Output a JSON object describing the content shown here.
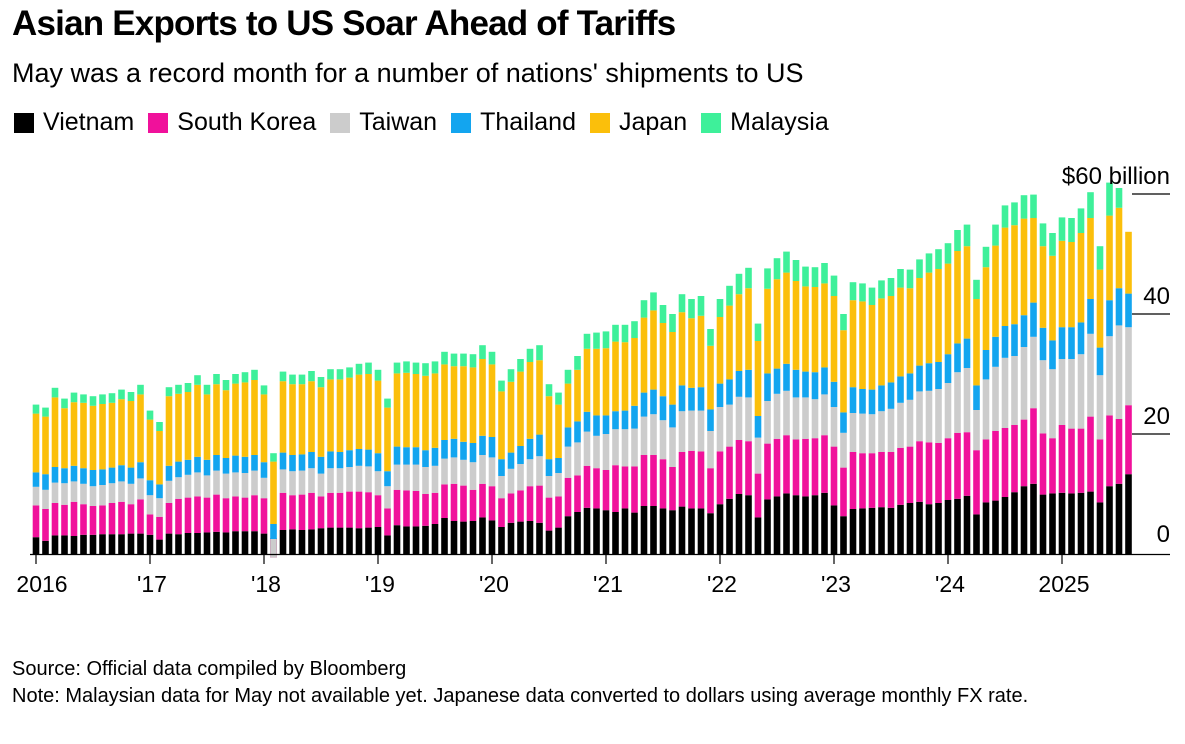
{
  "title": "Asian Exports to US Soar Ahead of Tariffs",
  "subtitle": "May was a record month for a number of nations' shipments to US",
  "source": "Source: Official data compiled by Bloomberg",
  "note": "Note: Malaysian data for May not available yet. Japanese data converted to dollars using average monthly FX rate.",
  "colors": {
    "Vietnam": "#000000",
    "South Korea": "#f0119b",
    "Taiwan": "#cccccc",
    "Thailand": "#13a5ef",
    "Japan": "#fbbf0b",
    "Malaysia": "#3ef09a"
  },
  "chart_data": {
    "type": "bar",
    "stacked": true,
    "title": "Asian Exports to US Soar Ahead of Tariffs",
    "subtitle": "May was a record month for a number of nations' shipments to US",
    "xlabel": "",
    "ylabel": "$ billion",
    "ylim": [
      0,
      60
    ],
    "yticks": [
      0,
      20,
      40,
      60
    ],
    "ytick_labels": [
      "0",
      "20",
      "40",
      "$60 billion"
    ],
    "x_start": "2016-01",
    "xtick_labels": [
      "2016",
      "'17",
      "'18",
      "'19",
      "'20",
      "'21",
      "'22",
      "'23",
      "'24",
      "2025"
    ],
    "legend": "top-left",
    "series": [
      {
        "name": "Vietnam",
        "values": [
          2.8,
          2.2,
          3.1,
          3.1,
          3.0,
          3.2,
          3.2,
          3.3,
          3.3,
          3.3,
          3.4,
          3.4,
          3.2,
          2.4,
          3.4,
          3.3,
          3.5,
          3.5,
          3.6,
          3.7,
          3.6,
          3.8,
          3.8,
          3.8,
          3.4,
          2.6,
          4.0,
          4.1,
          4.0,
          4.1,
          4.3,
          4.4,
          4.4,
          4.4,
          4.3,
          4.4,
          4.5,
          3.1,
          4.8,
          4.6,
          4.6,
          4.7,
          5.0,
          6.0,
          5.5,
          5.4,
          5.5,
          6.1,
          5.6,
          4.5,
          5.2,
          5.4,
          5.5,
          5.2,
          3.9,
          4.4,
          6.3,
          7.0,
          7.7,
          7.6,
          7.3,
          7.0,
          7.6,
          6.9,
          8.0,
          8.0,
          7.6,
          7.3,
          7.9,
          7.6,
          7.6,
          6.8,
          8.3,
          9.2,
          10.0,
          9.8,
          6.1,
          9.1,
          9.6,
          10.1,
          9.8,
          9.6,
          9.8,
          10.2,
          8.1,
          6.3,
          7.5,
          7.6,
          7.7,
          7.8,
          7.7,
          8.2,
          8.5,
          8.7,
          8.3,
          8.5,
          9.0,
          9.2,
          9.7,
          6.6,
          8.6,
          8.9,
          9.5,
          10.3,
          11.3,
          11.7,
          9.9,
          10.1,
          10.2,
          10.1,
          10.2,
          10.4,
          8.6,
          11.3,
          11.7,
          13.3
        ]
      },
      {
        "name": "South Korea",
        "values": [
          5.3,
          5.3,
          5.4,
          5.1,
          5.7,
          5.1,
          4.8,
          4.8,
          5.2,
          5.4,
          4.9,
          5.7,
          3.4,
          3.8,
          5.1,
          5.9,
          5.9,
          6.1,
          5.8,
          6.2,
          5.7,
          5.8,
          5.6,
          6.0,
          5.9,
          -3.2,
          6.2,
          5.7,
          5.9,
          6.1,
          5.3,
          5.8,
          5.8,
          6.0,
          6.1,
          5.9,
          5.3,
          4.5,
          5.9,
          6.0,
          5.9,
          5.3,
          5.2,
          5.6,
          6.2,
          6.0,
          5.2,
          5.6,
          5.7,
          4.8,
          4.9,
          5.2,
          5.8,
          6.2,
          5.5,
          5.2,
          6.4,
          6.1,
          7.0,
          6.7,
          6.7,
          7.8,
          7.0,
          7.7,
          8.5,
          8.5,
          8.2,
          7.2,
          9.1,
          9.6,
          9.5,
          7.5,
          8.8,
          8.7,
          9.0,
          9.0,
          7.3,
          9.3,
          9.6,
          9.7,
          9.3,
          9.6,
          9.5,
          9.6,
          9.8,
          8.1,
          9.5,
          9.2,
          9.1,
          9.2,
          9.3,
          9.5,
          9.4,
          10.1,
          10.3,
          10.0,
          10.3,
          11.0,
          10.6,
          10.7,
          10.5,
          11.6,
          11.5,
          11.2,
          11.1,
          12.6,
          10.2,
          9.2,
          11.3,
          10.8,
          10.7,
          12.5,
          10.5,
          11.8,
          10.8,
          11.5
        ]
      },
      {
        "name": "Taiwan",
        "values": [
          3.1,
          3.2,
          3.4,
          3.6,
          3.4,
          3.4,
          3.3,
          3.4,
          3.3,
          3.4,
          3.4,
          3.5,
          3.2,
          3.1,
          3.7,
          3.6,
          3.8,
          4.0,
          3.7,
          4.0,
          4.1,
          4.0,
          4.1,
          4.1,
          3.4,
          3.1,
          3.9,
          4.0,
          4.0,
          4.1,
          3.8,
          4.1,
          4.1,
          4.1,
          4.3,
          4.3,
          4.0,
          3.7,
          4.2,
          4.3,
          4.4,
          4.5,
          4.5,
          4.3,
          4.4,
          4.3,
          4.6,
          4.8,
          4.8,
          3.7,
          4.1,
          4.4,
          4.5,
          4.9,
          3.6,
          3.9,
          5.2,
          5.5,
          5.7,
          5.4,
          6.0,
          6.0,
          6.2,
          6.3,
          6.4,
          6.8,
          6.5,
          6.6,
          6.8,
          6.7,
          6.8,
          6.2,
          7.4,
          7.0,
          7.2,
          7.3,
          6.0,
          7.1,
          7.5,
          7.4,
          7.0,
          6.9,
          6.5,
          6.8,
          6.6,
          5.8,
          6.5,
          6.6,
          6.5,
          6.8,
          7.2,
          7.5,
          7.8,
          8.3,
          8.6,
          9.0,
          9.2,
          10.1,
          10.7,
          6.7,
          10.0,
          10.7,
          11.7,
          11.5,
          12.1,
          11.9,
          12.2,
          11.5,
          11.0,
          11.6,
          12.4,
          13.8,
          10.7,
          13.2,
          15.6,
          13.0
        ]
      },
      {
        "name": "Thailand",
        "values": [
          2.4,
          2.6,
          2.6,
          2.5,
          2.6,
          2.6,
          2.7,
          2.6,
          2.6,
          2.7,
          2.7,
          2.7,
          2.5,
          2.3,
          2.5,
          2.6,
          2.5,
          2.6,
          2.6,
          2.6,
          2.6,
          2.8,
          2.7,
          2.6,
          2.6,
          2.5,
          2.8,
          2.7,
          2.7,
          2.7,
          2.8,
          2.8,
          2.7,
          2.8,
          2.8,
          2.8,
          3.0,
          2.5,
          3.0,
          2.9,
          2.9,
          2.8,
          3.0,
          3.1,
          3.1,
          3.0,
          3.2,
          3.2,
          3.4,
          2.8,
          2.7,
          3.0,
          3.4,
          3.6,
          2.8,
          2.5,
          3.2,
          3.5,
          3.3,
          3.4,
          3.1,
          3.0,
          3.1,
          3.8,
          4.0,
          4.1,
          4.0,
          3.8,
          4.3,
          3.8,
          3.9,
          3.6,
          3.9,
          4.2,
          4.3,
          4.6,
          3.6,
          4.6,
          4.2,
          4.5,
          4.6,
          4.3,
          4.5,
          4.5,
          4.2,
          3.4,
          4.3,
          4.1,
          4.1,
          4.3,
          4.4,
          4.4,
          4.4,
          4.3,
          4.6,
          4.5,
          4.8,
          4.8,
          4.9,
          4.1,
          4.9,
          5.0,
          5.3,
          5.3,
          5.3,
          5.7,
          5.4,
          4.8,
          5.3,
          5.3,
          5.3,
          5.8,
          4.6,
          6.0,
          6.2,
          5.6
        ]
      },
      {
        "name": "Japan",
        "values": [
          9.8,
          9.6,
          11.6,
          10.0,
          10.6,
          10.9,
          10.7,
          10.9,
          10.8,
          11.0,
          11.1,
          11.3,
          10.1,
          8.9,
          11.6,
          11.3,
          11.3,
          12.0,
          10.9,
          11.8,
          11.3,
          12.0,
          12.4,
          12.5,
          11.3,
          10.4,
          11.9,
          11.8,
          11.7,
          11.8,
          11.6,
          12.0,
          12.1,
          12.1,
          12.4,
          12.6,
          12.1,
          10.6,
          12.2,
          12.4,
          12.2,
          12.4,
          12.4,
          12.6,
          12.1,
          12.6,
          12.6,
          12.8,
          12.1,
          11.3,
          11.8,
          12.4,
          12.8,
          12.4,
          10.5,
          8.9,
          7.3,
          8.6,
          10.5,
          11.1,
          11.2,
          11.6,
          11.4,
          11.3,
          12.5,
          13.2,
          12.2,
          12.1,
          12.2,
          11.6,
          11.9,
          10.6,
          11.1,
          12.3,
          12.8,
          13.6,
          12.5,
          14.1,
          14.9,
          15.2,
          14.8,
          14.2,
          14.2,
          14.0,
          14.3,
          13.7,
          14.5,
          14.6,
          14.1,
          14.5,
          14.4,
          14.8,
          14.2,
          14.6,
          15.1,
          15.5,
          15.1,
          15.4,
          15.4,
          14.4,
          13.8,
          15.2,
          16.4,
          16.5,
          16.1,
          14.1,
          13.6,
          14.1,
          14.4,
          14.2,
          14.9,
          13.5,
          13.0,
          14.1,
          13.4,
          10.3
        ]
      },
      {
        "name": "Malaysia",
        "values": [
          1.5,
          1.5,
          1.6,
          1.6,
          1.6,
          1.4,
          1.6,
          1.6,
          1.6,
          1.6,
          1.5,
          1.6,
          1.5,
          1.5,
          1.5,
          1.5,
          1.5,
          1.6,
          1.6,
          1.7,
          1.7,
          1.6,
          1.7,
          1.7,
          1.5,
          1.4,
          1.6,
          1.6,
          1.6,
          1.7,
          1.7,
          1.7,
          1.7,
          1.7,
          1.8,
          1.9,
          1.8,
          1.5,
          1.8,
          1.9,
          1.9,
          2.1,
          2.0,
          2.1,
          2.1,
          2.1,
          2.2,
          2.3,
          2.1,
          1.8,
          2.1,
          2.1,
          2.2,
          2.5,
          2.0,
          2.0,
          2.3,
          2.3,
          2.5,
          2.7,
          2.8,
          2.8,
          2.9,
          2.8,
          2.9,
          3.0,
          3.0,
          3.0,
          3.0,
          3.2,
          3.3,
          2.8,
          3.0,
          3.3,
          3.4,
          3.4,
          2.9,
          3.4,
          3.5,
          3.5,
          3.5,
          3.3,
          3.3,
          3.4,
          3.4,
          2.7,
          3.0,
          3.0,
          2.9,
          3.0,
          3.0,
          3.1,
          3.1,
          3.1,
          3.2,
          3.3,
          3.4,
          3.5,
          3.6,
          3.2,
          3.4,
          3.5,
          3.7,
          3.8,
          3.9,
          3.9,
          3.8,
          3.8,
          3.9,
          4.0,
          4.1,
          4.3,
          3.9,
          5.5,
          3.3,
          0
        ]
      }
    ]
  }
}
